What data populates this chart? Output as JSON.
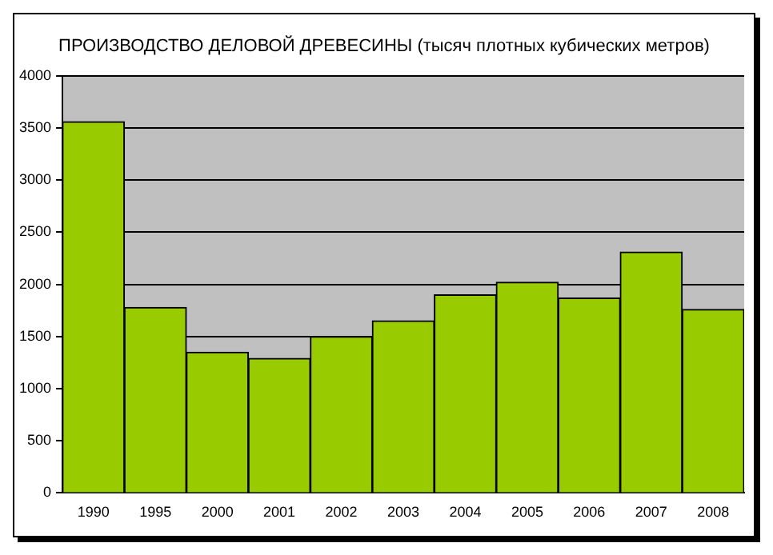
{
  "chart_data": {
    "type": "bar",
    "title": "ПРОИЗВОДСТВО ДЕЛОВОЙ ДРЕВЕСИНЫ (тысяч плотных кубических метров)",
    "categories": [
      "1990",
      "1995",
      "2000",
      "2001",
      "2002",
      "2003",
      "2004",
      "2005",
      "2006",
      "2007",
      "2008"
    ],
    "values": [
      3560,
      1780,
      1350,
      1290,
      1500,
      1650,
      1900,
      2020,
      1870,
      2310,
      1760
    ],
    "color": "#99cc00",
    "ylim": [
      0,
      4000
    ],
    "yticks": [
      0,
      500,
      1000,
      1500,
      2000,
      2500,
      3000,
      3500,
      4000
    ],
    "grid": "y"
  }
}
